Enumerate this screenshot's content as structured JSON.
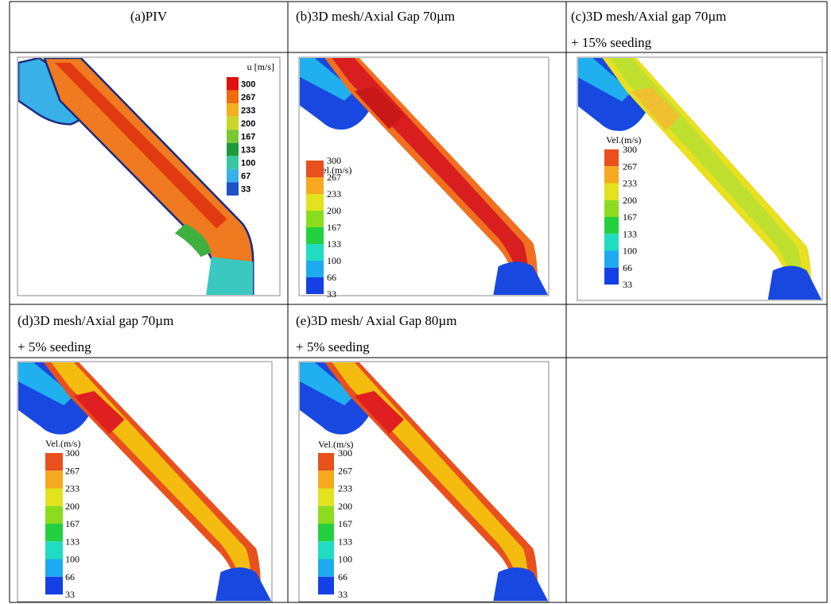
{
  "panels": [
    {
      "caption": [
        "(a)PIV"
      ],
      "legend_title": "u [m/s]",
      "legend_labels": [
        300,
        267,
        233,
        200,
        167,
        133,
        100,
        67,
        33
      ]
    },
    {
      "caption": [
        "(b)3D mesh/Axial Gap 70µm"
      ],
      "legend_title": "Vel.(m/s)",
      "legend_labels": [
        300,
        267,
        233,
        200,
        167,
        133,
        100,
        66,
        33
      ]
    },
    {
      "caption": [
        "(c)3D mesh/Axial gap 70µm",
        "+ 15% seeding"
      ],
      "legend_title": "Vel.(m/s)",
      "legend_labels": [
        300,
        267,
        233,
        200,
        167,
        133,
        100,
        66,
        33
      ]
    },
    {
      "caption": [
        "(d)3D mesh/Axial gap 70µm",
        "+ 5% seeding"
      ],
      "legend_title": "Vel.(m/s)",
      "legend_labels": [
        300,
        267,
        233,
        200,
        167,
        133,
        100,
        66,
        33
      ]
    },
    {
      "caption": [
        "(e)3D mesh/ Axial Gap 80µm",
        "+ 5% seeding"
      ],
      "legend_title": "Vel.(m/s)",
      "legend_labels": [
        300,
        267,
        233,
        200,
        167,
        133,
        100,
        66,
        33
      ]
    }
  ]
}
